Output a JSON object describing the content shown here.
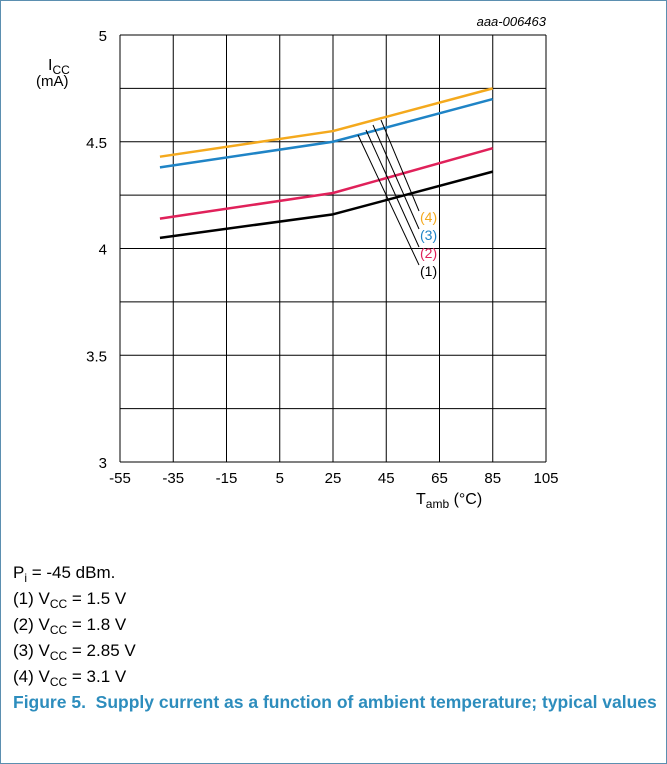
{
  "chart_data": {
    "type": "line",
    "id_label": "aaa-006463",
    "ylabel_main": "I",
    "ylabel_sub": "CC",
    "ylabel_unit": "(mA)",
    "xlabel_main": "T",
    "xlabel_sub": "amb",
    "xlabel_unit": "(°C)",
    "xlim": [
      -55,
      105
    ],
    "ylim": [
      3,
      5
    ],
    "x_ticks": [
      -55,
      -35,
      -15,
      5,
      25,
      45,
      65,
      85,
      105
    ],
    "y_ticks": [
      3,
      3.5,
      4,
      4.5,
      5
    ],
    "y_tick_labels": [
      "3",
      "3.5",
      "4",
      "4.5",
      "5"
    ],
    "grid": true,
    "series": [
      {
        "name": "(1)",
        "color": "#000000",
        "x": [
          -40,
          25,
          85
        ],
        "y": [
          4.05,
          4.16,
          4.36
        ]
      },
      {
        "name": "(2)",
        "color": "#e0215a",
        "x": [
          -40,
          25,
          85
        ],
        "y": [
          4.14,
          4.26,
          4.47
        ]
      },
      {
        "name": "(3)",
        "color": "#1f84c6",
        "x": [
          -40,
          25,
          85
        ],
        "y": [
          4.38,
          4.5,
          4.7
        ]
      },
      {
        "name": "(4)",
        "color": "#f4a91d",
        "x": [
          -40,
          25,
          85
        ],
        "y": [
          4.43,
          4.55,
          4.75
        ]
      }
    ]
  },
  "notes": {
    "line0": {
      "main": "P",
      "sub": "i",
      "rest": " = -45 dBm."
    },
    "line1": {
      "pre": "(1) V",
      "sub": "CC",
      "rest": " = 1.5 V"
    },
    "line2": {
      "pre": "(2) V",
      "sub": "CC",
      "rest": " = 1.8 V"
    },
    "line3": {
      "pre": "(3) V",
      "sub": "CC",
      "rest": " = 2.85 V"
    },
    "line4": {
      "pre": "(4) V",
      "sub": "CC",
      "rest": " = 3.1 V"
    }
  },
  "caption": {
    "number": "Figure 5.",
    "text": "Supply current as a function of ambient temperature; typical values"
  }
}
